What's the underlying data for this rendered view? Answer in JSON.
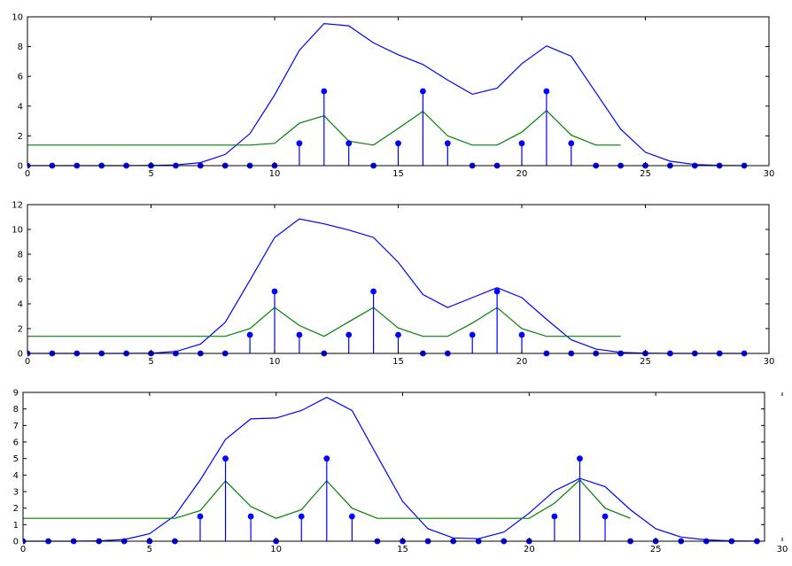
{
  "colors": {
    "stem": "#0000ff",
    "blue_line": "#0000ff",
    "green_line": "#008000",
    "axes": "#000000"
  },
  "chart_data": [
    {
      "type": "line",
      "xlim": [
        0,
        30
      ],
      "ylim": [
        0,
        10
      ],
      "xticks": [
        "0",
        "5",
        "10",
        "15",
        "20",
        "25",
        "30"
      ],
      "yticks": [
        "0",
        "2",
        "4",
        "6",
        "8",
        "10"
      ],
      "grid": false,
      "stems": [
        {
          "x": 0,
          "y": 0
        },
        {
          "x": 1,
          "y": 0
        },
        {
          "x": 2,
          "y": 0
        },
        {
          "x": 3,
          "y": 0
        },
        {
          "x": 4,
          "y": 0
        },
        {
          "x": 5,
          "y": 0
        },
        {
          "x": 6,
          "y": 0
        },
        {
          "x": 7,
          "y": 0
        },
        {
          "x": 8,
          "y": 0
        },
        {
          "x": 9,
          "y": 0
        },
        {
          "x": 10,
          "y": 0
        },
        {
          "x": 11,
          "y": 1.5
        },
        {
          "x": 12,
          "y": 5
        },
        {
          "x": 13,
          "y": 1.5
        },
        {
          "x": 14,
          "y": 0
        },
        {
          "x": 15,
          "y": 1.5
        },
        {
          "x": 16,
          "y": 5
        },
        {
          "x": 17,
          "y": 1.5
        },
        {
          "x": 18,
          "y": 0
        },
        {
          "x": 19,
          "y": 0
        },
        {
          "x": 20,
          "y": 1.5
        },
        {
          "x": 21,
          "y": 5
        },
        {
          "x": 22,
          "y": 1.5
        },
        {
          "x": 23,
          "y": 0
        },
        {
          "x": 24,
          "y": 0
        },
        {
          "x": 25,
          "y": 0
        },
        {
          "x": 26,
          "y": 0
        },
        {
          "x": 27,
          "y": 0
        },
        {
          "x": 28,
          "y": 0
        },
        {
          "x": 29,
          "y": 0
        }
      ],
      "series": [
        {
          "color": "blue",
          "x": [
            0,
            1,
            2,
            3,
            4,
            5,
            6,
            7,
            8,
            9,
            10,
            11,
            12,
            13,
            14,
            15,
            16,
            17,
            18,
            19,
            20,
            21,
            22,
            23,
            24,
            25,
            26,
            27,
            28,
            29
          ],
          "y": [
            0,
            0,
            0,
            0,
            0,
            0.02,
            0.05,
            0.2,
            0.75,
            2.15,
            4.75,
            7.75,
            9.55,
            9.4,
            8.25,
            7.45,
            6.8,
            5.75,
            4.8,
            5.2,
            6.85,
            8.05,
            7.35,
            4.9,
            2.45,
            0.9,
            0.3,
            0.08,
            0.02,
            0
          ]
        },
        {
          "color": "green",
          "x": [
            0,
            9,
            10,
            11,
            12,
            13,
            14,
            15,
            16,
            17,
            18,
            19,
            20,
            21,
            22,
            23,
            24
          ],
          "y": [
            1.38,
            1.38,
            1.5,
            2.85,
            3.35,
            1.65,
            1.38,
            2.5,
            3.65,
            2.0,
            1.38,
            1.38,
            2.25,
            3.7,
            2.05,
            1.38,
            1.38
          ]
        }
      ]
    },
    {
      "type": "line",
      "xlim": [
        0,
        30
      ],
      "ylim": [
        0,
        12
      ],
      "xticks": [
        "0",
        "5",
        "10",
        "15",
        "20",
        "25",
        "30"
      ],
      "yticks": [
        "0",
        "2",
        "4",
        "6",
        "8",
        "10",
        "12"
      ],
      "grid": false,
      "stems": [
        {
          "x": 0,
          "y": 0
        },
        {
          "x": 1,
          "y": 0
        },
        {
          "x": 2,
          "y": 0
        },
        {
          "x": 3,
          "y": 0
        },
        {
          "x": 4,
          "y": 0
        },
        {
          "x": 5,
          "y": 0
        },
        {
          "x": 6,
          "y": 0
        },
        {
          "x": 7,
          "y": 0
        },
        {
          "x": 8,
          "y": 0
        },
        {
          "x": 9,
          "y": 1.5
        },
        {
          "x": 10,
          "y": 5
        },
        {
          "x": 11,
          "y": 1.5
        },
        {
          "x": 12,
          "y": 0
        },
        {
          "x": 13,
          "y": 1.5
        },
        {
          "x": 14,
          "y": 5
        },
        {
          "x": 15,
          "y": 1.5
        },
        {
          "x": 16,
          "y": 0
        },
        {
          "x": 17,
          "y": 0
        },
        {
          "x": 18,
          "y": 1.5
        },
        {
          "x": 19,
          "y": 5
        },
        {
          "x": 20,
          "y": 1.5
        },
        {
          "x": 21,
          "y": 0
        },
        {
          "x": 22,
          "y": 0
        },
        {
          "x": 23,
          "y": 0
        },
        {
          "x": 24,
          "y": 0
        },
        {
          "x": 25,
          "y": 0
        },
        {
          "x": 26,
          "y": 0
        },
        {
          "x": 27,
          "y": 0
        },
        {
          "x": 28,
          "y": 0
        },
        {
          "x": 29,
          "y": 0
        }
      ],
      "series": [
        {
          "color": "blue",
          "x": [
            0,
            1,
            2,
            3,
            4,
            5,
            6,
            7,
            8,
            9,
            10,
            11,
            12,
            13,
            14,
            15,
            16,
            17,
            18,
            19,
            20,
            21,
            22,
            23,
            24,
            25,
            26,
            27,
            28,
            29
          ],
          "y": [
            0,
            0,
            0,
            0,
            0,
            0.02,
            0.15,
            0.75,
            2.5,
            5.9,
            9.35,
            10.85,
            10.45,
            9.95,
            9.35,
            7.35,
            4.75,
            3.7,
            4.5,
            5.3,
            4.5,
            2.75,
            1.1,
            0.35,
            0.08,
            0.02,
            0,
            0,
            0,
            0
          ]
        },
        {
          "color": "green",
          "x": [
            0,
            8,
            9,
            10,
            11,
            12,
            13,
            14,
            15,
            16,
            17,
            18,
            19,
            20,
            21,
            22,
            23,
            24
          ],
          "y": [
            1.38,
            1.38,
            2.0,
            3.7,
            2.25,
            1.38,
            2.55,
            3.7,
            2.05,
            1.38,
            1.38,
            2.45,
            3.7,
            2.0,
            1.38,
            1.38,
            1.38,
            1.38
          ]
        }
      ]
    },
    {
      "type": "line",
      "xlim": [
        0,
        29.3
      ],
      "ylim": [
        0,
        9
      ],
      "xticks": [
        "0",
        "5",
        "10",
        "15",
        "20",
        "25",
        "30"
      ],
      "yticks": [
        "0",
        "1",
        "2",
        "3",
        "4",
        "5",
        "6",
        "7",
        "8",
        "9"
      ],
      "grid": false,
      "stems": [
        {
          "x": 0,
          "y": 0
        },
        {
          "x": 1,
          "y": 0
        },
        {
          "x": 2,
          "y": 0
        },
        {
          "x": 3,
          "y": 0
        },
        {
          "x": 4,
          "y": 0
        },
        {
          "x": 5,
          "y": 0
        },
        {
          "x": 6,
          "y": 0
        },
        {
          "x": 7,
          "y": 1.5
        },
        {
          "x": 8,
          "y": 5
        },
        {
          "x": 9,
          "y": 1.5
        },
        {
          "x": 10,
          "y": 0
        },
        {
          "x": 11,
          "y": 1.5
        },
        {
          "x": 12,
          "y": 5
        },
        {
          "x": 13,
          "y": 1.5
        },
        {
          "x": 14,
          "y": 0
        },
        {
          "x": 15,
          "y": 0
        },
        {
          "x": 16,
          "y": 0
        },
        {
          "x": 17,
          "y": 0
        },
        {
          "x": 18,
          "y": 0
        },
        {
          "x": 19,
          "y": 0
        },
        {
          "x": 20,
          "y": 0
        },
        {
          "x": 21,
          "y": 1.5
        },
        {
          "x": 22,
          "y": 5
        },
        {
          "x": 23,
          "y": 1.5
        },
        {
          "x": 24,
          "y": 0
        },
        {
          "x": 25,
          "y": 0
        },
        {
          "x": 26,
          "y": 0
        },
        {
          "x": 27,
          "y": 0
        },
        {
          "x": 28,
          "y": 0
        },
        {
          "x": 29,
          "y": 0
        }
      ],
      "series": [
        {
          "color": "blue",
          "x": [
            0,
            1,
            2,
            3,
            4,
            5,
            6,
            7,
            8,
            9,
            10,
            11,
            12,
            13,
            14,
            15,
            16,
            17,
            18,
            19,
            20,
            21,
            22,
            23,
            24,
            25,
            26,
            27,
            28,
            29
          ],
          "y": [
            0,
            0,
            0,
            0.02,
            0.1,
            0.45,
            1.55,
            3.7,
            6.15,
            7.4,
            7.45,
            7.9,
            8.7,
            7.9,
            5.15,
            2.4,
            0.75,
            0.2,
            0.15,
            0.55,
            1.7,
            3.05,
            3.8,
            3.3,
            1.9,
            0.75,
            0.25,
            0.08,
            0.02,
            0
          ]
        },
        {
          "color": "green",
          "x": [
            0,
            6,
            7,
            8,
            9,
            10,
            11,
            12,
            13,
            14,
            15,
            16,
            17,
            18,
            19,
            20,
            21,
            22,
            23,
            24
          ],
          "y": [
            1.38,
            1.38,
            1.85,
            3.65,
            2.1,
            1.38,
            1.9,
            3.65,
            2.0,
            1.38,
            1.38,
            1.38,
            1.38,
            1.38,
            1.38,
            1.38,
            2.3,
            3.7,
            2.0,
            1.38
          ]
        }
      ]
    }
  ]
}
